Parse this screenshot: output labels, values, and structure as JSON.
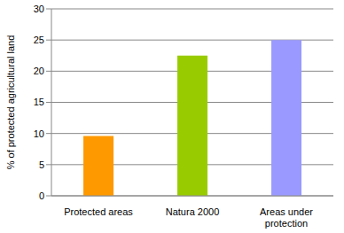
{
  "chart_data": {
    "type": "bar",
    "y_label": "% of protected agricultural land",
    "categories": [
      "Protected areas",
      "Natura 2000",
      "Areas under protection"
    ],
    "values": [
      9.6,
      22.5,
      25
    ],
    "colors": [
      "#ff9900",
      "#99cc00",
      "#9999ff"
    ],
    "ylim": [
      0,
      30
    ],
    "yticks": [
      0,
      5,
      10,
      15,
      20,
      25,
      30
    ],
    "grid": true
  }
}
